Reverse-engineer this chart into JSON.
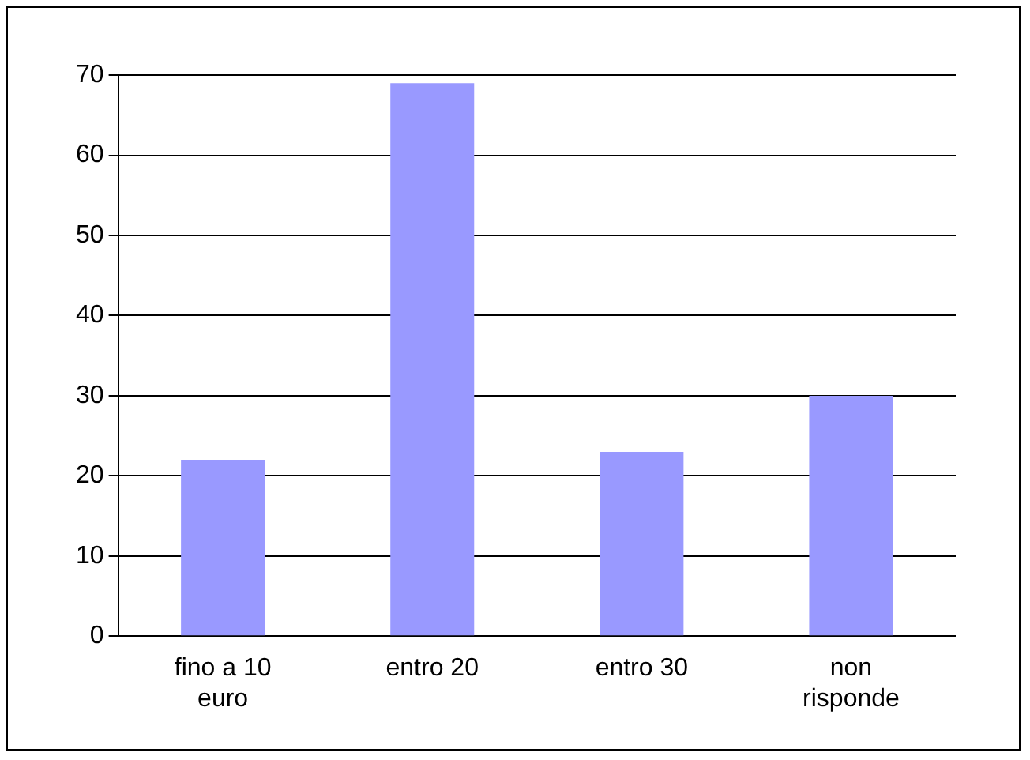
{
  "chart_data": {
    "type": "bar",
    "categories": [
      "fino a 10 euro",
      "entro 20",
      "entro 30",
      "non risponde"
    ],
    "values": [
      22,
      69,
      23,
      30
    ],
    "color": "#9999ff",
    "ylim": [
      0,
      70
    ],
    "yticks": [
      0,
      10,
      20,
      30,
      40,
      50,
      60,
      70
    ],
    "grid": "y",
    "legend": false
  }
}
